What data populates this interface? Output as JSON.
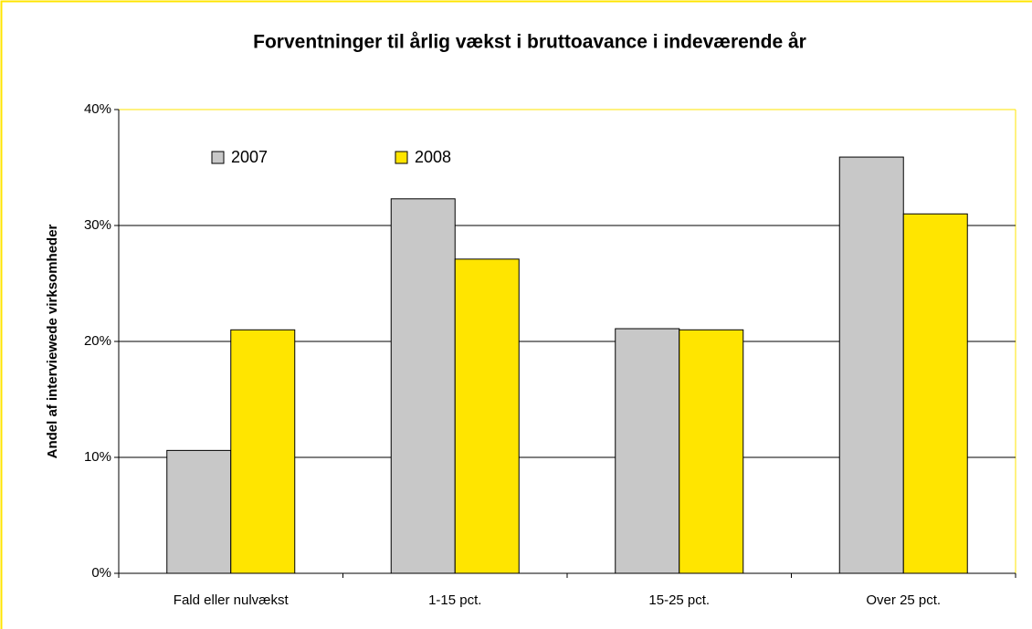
{
  "chart_data": {
    "type": "bar",
    "title": "Forventninger til årlig vækst i bruttoavance i indeværende år",
    "y_label": "Andel af interviewede virksomheder",
    "categories": [
      "Fald eller nulvækst",
      "1-15 pct.",
      "15-25 pct.",
      "Over 25 pct."
    ],
    "series": [
      {
        "name": "2007",
        "color": "#c8c8c8",
        "values": [
          10.6,
          32.3,
          21.1,
          35.9
        ]
      },
      {
        "name": "2008",
        "color": "#ffe500",
        "values": [
          21.0,
          27.1,
          21.0,
          31.0
        ]
      }
    ],
    "ylim": [
      0,
      40
    ],
    "yticks": [
      {
        "value": 0,
        "label": "0%"
      },
      {
        "value": 10,
        "label": "10%"
      },
      {
        "value": 20,
        "label": "20%"
      },
      {
        "value": 30,
        "label": "30%"
      },
      {
        "value": 40,
        "label": "40%"
      }
    ],
    "grid": true,
    "legend": "top-left"
  }
}
